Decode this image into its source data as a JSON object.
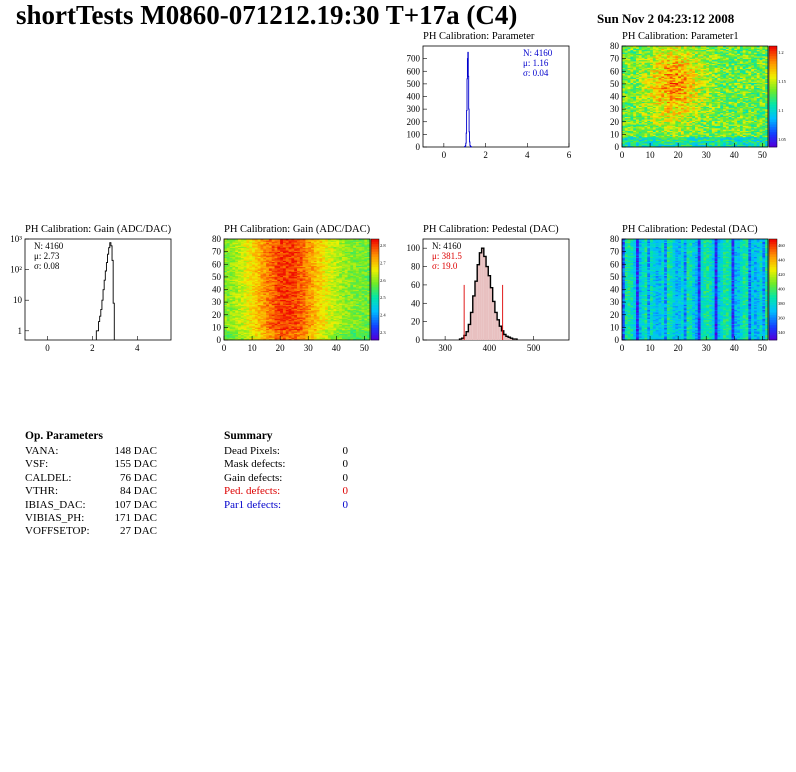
{
  "header": {
    "title": "shortTests M0860-071212.19:30 T+17a (C4)",
    "date": "Sun Nov  2 04:23:12 2008"
  },
  "colors": {
    "blue": "#0000cc",
    "red": "#dd0000",
    "black": "#000000"
  },
  "chart_data": [
    {
      "id": "param_hist",
      "type": "histogram",
      "title": "PH Calibration: Parameter",
      "xlim": [
        -1,
        6
      ],
      "ylim": [
        0,
        800
      ],
      "xticks": [
        0,
        2,
        4,
        6
      ],
      "yticks": [
        0,
        100,
        200,
        300,
        400,
        500,
        600,
        700
      ],
      "line_color": "#0000cc",
      "stats": {
        "n": "N: 4160",
        "mu": "μ: 1.16",
        "sigma": "σ: 0.04"
      },
      "stats_color": "#0000cc",
      "series": [
        {
          "x": [
            1.0,
            1.02,
            1.04,
            1.06,
            1.08,
            1.1,
            1.12,
            1.14,
            1.16,
            1.18,
            1.2,
            1.22,
            1.24,
            1.26,
            1.28,
            1.3,
            1.32
          ],
          "values": [
            2,
            4,
            10,
            30,
            110,
            290,
            540,
            700,
            750,
            560,
            300,
            120,
            40,
            12,
            5,
            2,
            1
          ]
        }
      ]
    },
    {
      "id": "param_map",
      "type": "heatmap",
      "title": "PH Calibration: Parameter1",
      "xlim": [
        0,
        52
      ],
      "ylim": [
        0,
        80
      ],
      "xticks": [
        0,
        10,
        20,
        30,
        40,
        50
      ],
      "yticks": [
        0,
        10,
        20,
        30,
        40,
        50,
        60,
        70,
        80
      ],
      "colorbar_ticks": [
        "1.2",
        "1.15",
        "1.1",
        "1.05"
      ],
      "palette_range": [
        1.0,
        1.25
      ],
      "pattern": "param"
    },
    {
      "id": "gain_hist",
      "type": "histogram",
      "title": "PH Calibration: Gain (ADC/DAC)",
      "log_y": true,
      "xlim": [
        -1,
        5.5
      ],
      "ylim": [
        0.5,
        1000
      ],
      "xticks": [
        0,
        2,
        4
      ],
      "yticks_log": [
        {
          "v": 1,
          "label": "1"
        },
        {
          "v": 10,
          "label": "10"
        },
        {
          "v": 100,
          "label": "10²"
        },
        {
          "v": 1000,
          "label": "10³"
        }
      ],
      "line_color": "#000000",
      "stats": {
        "n": "N: 4160",
        "mu": "μ: 2.73",
        "sigma": "σ: 0.08"
      },
      "stats_color": "#000000",
      "series": [
        {
          "x": [
            2.2,
            2.25,
            2.3,
            2.35,
            2.4,
            2.45,
            2.5,
            2.55,
            2.6,
            2.65,
            2.7,
            2.75,
            2.8,
            2.85,
            2.9,
            2.95
          ],
          "values": [
            1,
            1,
            2,
            3,
            5,
            10,
            22,
            45,
            90,
            170,
            320,
            520,
            760,
            600,
            200,
            8
          ]
        }
      ]
    },
    {
      "id": "gain_map",
      "type": "heatmap",
      "title": "PH Calibration: Gain (ADC/DAC)",
      "xlim": [
        0,
        52
      ],
      "ylim": [
        0,
        80
      ],
      "xticks": [
        0,
        10,
        20,
        30,
        40,
        50
      ],
      "yticks": [
        0,
        10,
        20,
        30,
        40,
        50,
        60,
        70,
        80
      ],
      "colorbar_ticks": [
        "2.8",
        "2.7",
        "2.6",
        "2.5",
        "2.4",
        "2.3"
      ],
      "palette_range": [
        2.25,
        2.85
      ],
      "pattern": "gain"
    },
    {
      "id": "ped_hist",
      "type": "histogram",
      "title": "PH Calibration: Pedestal (DAC)",
      "xlim": [
        250,
        580
      ],
      "ylim": [
        0,
        110
      ],
      "xticks": [
        300,
        400,
        500
      ],
      "yticks": [
        0,
        20,
        40,
        60,
        80,
        100
      ],
      "line_color": "#000000",
      "stats": {
        "n": "N: 4160",
        "mu": "μ: 381.5",
        "sigma": "σ: 19.0"
      },
      "stats_color": "#dd0000",
      "cut_lines": [
        343,
        430
      ],
      "series": [
        {
          "x": [
            335,
            340,
            345,
            350,
            355,
            360,
            365,
            370,
            375,
            380,
            385,
            390,
            395,
            400,
            405,
            410,
            415,
            420,
            425,
            430,
            435,
            440,
            445,
            450,
            455,
            460
          ],
          "values": [
            1,
            2,
            5,
            9,
            17,
            30,
            48,
            64,
            82,
            95,
            100,
            91,
            80,
            70,
            57,
            42,
            30,
            22,
            15,
            10,
            6,
            4,
            3,
            2,
            1,
            1
          ]
        }
      ]
    },
    {
      "id": "ped_map",
      "type": "heatmap",
      "title": "PH Calibration: Pedestal (DAC)",
      "xlim": [
        0,
        52
      ],
      "ylim": [
        0,
        80
      ],
      "xticks": [
        0,
        10,
        20,
        30,
        40,
        50
      ],
      "yticks": [
        0,
        10,
        20,
        30,
        40,
        50,
        60,
        70,
        80
      ],
      "colorbar_ticks": [
        "460",
        "440",
        "420",
        "400",
        "380",
        "360",
        "340"
      ],
      "palette_range": [
        330,
        470
      ],
      "pattern": "ped"
    }
  ],
  "op_params": {
    "title": "Op. Parameters",
    "rows": [
      {
        "name": "VANA:",
        "value": "148 DAC"
      },
      {
        "name": "VSF:",
        "value": "155 DAC"
      },
      {
        "name": "CALDEL:",
        "value": "76 DAC"
      },
      {
        "name": "VTHR:",
        "value": "84 DAC"
      },
      {
        "name": "IBIAS_DAC:",
        "value": "107 DAC"
      },
      {
        "name": "VIBIAS_PH:",
        "value": "171 DAC"
      },
      {
        "name": "VOFFSETOP:",
        "value": "27 DAC"
      }
    ]
  },
  "summary": {
    "title": "Summary",
    "rows": [
      {
        "name": "Dead Pixels:",
        "value": "0",
        "color": "#000000"
      },
      {
        "name": "Mask defects:",
        "value": "0",
        "color": "#000000"
      },
      {
        "name": "Gain defects:",
        "value": "0",
        "color": "#000000"
      },
      {
        "name": "Ped. defects:",
        "value": "0",
        "color": "#dd0000"
      },
      {
        "name": "Par1 defects:",
        "value": "0",
        "color": "#0000cc"
      }
    ]
  }
}
